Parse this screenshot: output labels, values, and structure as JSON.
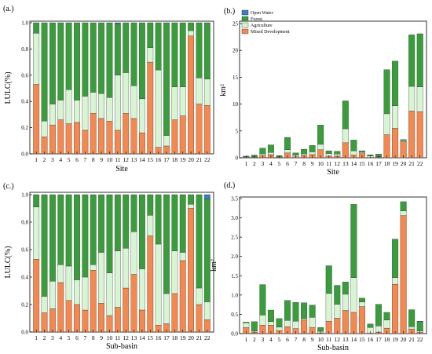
{
  "colors": {
    "mixed_development": "#f4884f",
    "agriculture": "#d7f5d2",
    "forest": "#3a9d3c",
    "open_water": "#3b7ec8"
  },
  "chart_data": [
    {
      "id": "a",
      "panel_label": "(a.)",
      "type": "bar",
      "stacked": true,
      "xlabel": "Site",
      "ylabel": "LULC(%)",
      "ylim": [
        0,
        1.0
      ],
      "yticks": [
        "0.0",
        "0.2",
        "0.4",
        "0.6",
        "0.8",
        "1.0"
      ],
      "categories": [
        "1",
        "2",
        "3",
        "4",
        "5",
        "6",
        "7",
        "8",
        "9",
        "10",
        "11",
        "12",
        "13",
        "14",
        "15",
        "16",
        "17",
        "18",
        "19",
        "20",
        "21",
        "22"
      ],
      "series": [
        {
          "key": "mixed_development",
          "values": [
            0.53,
            0.13,
            0.22,
            0.26,
            0.23,
            0.24,
            0.18,
            0.31,
            0.27,
            0.25,
            0.18,
            0.31,
            0.27,
            0.16,
            0.7,
            0.05,
            0.06,
            0.26,
            0.29,
            0.9,
            0.38,
            0.37
          ]
        },
        {
          "key": "agriculture",
          "values": [
            0.39,
            0.12,
            0.16,
            0.15,
            0.26,
            0.17,
            0.26,
            0.16,
            0.19,
            0.18,
            0.42,
            0.31,
            0.25,
            0.26,
            0.11,
            0.59,
            0.08,
            0.25,
            0.22,
            0.04,
            0.2,
            0.2
          ]
        },
        {
          "key": "forest",
          "values": [
            0.08,
            0.75,
            0.62,
            0.59,
            0.51,
            0.59,
            0.56,
            0.53,
            0.54,
            0.57,
            0.39,
            0.38,
            0.48,
            0.58,
            0.19,
            0.36,
            0.86,
            0.49,
            0.49,
            0.06,
            0.42,
            0.43
          ]
        },
        {
          "key": "open_water",
          "values": [
            0,
            0,
            0,
            0,
            0,
            0,
            0,
            0,
            0,
            0,
            0.01,
            0,
            0,
            0,
            0,
            0,
            0,
            0,
            0,
            0,
            0,
            0
          ]
        }
      ]
    },
    {
      "id": "b",
      "panel_label": "(b.)",
      "type": "bar",
      "stacked": true,
      "xlabel": "Site",
      "ylabel": "km²",
      "ylim": [
        0,
        25
      ],
      "yticks": [
        "0",
        "5",
        "10",
        "15",
        "20",
        "25"
      ],
      "categories": [
        "1",
        "2",
        "3",
        "4",
        "5",
        "6",
        "7",
        "8",
        "9",
        "10",
        "11",
        "12",
        "13",
        "14",
        "15",
        "16",
        "17",
        "18",
        "19",
        "20",
        "21",
        "22"
      ],
      "series": [
        {
          "key": "mixed_development",
          "values": [
            0.1,
            0.1,
            0.4,
            0.6,
            0.1,
            0.9,
            0.2,
            0.4,
            0.6,
            1.5,
            0.3,
            0.3,
            2.8,
            0.5,
            0.9,
            0.05,
            0.1,
            4.3,
            5.5,
            3.0,
            8.7,
            8.6
          ]
        },
        {
          "key": "agriculture",
          "values": [
            0.1,
            0.1,
            0.3,
            0.4,
            0.1,
            0.6,
            0.3,
            0.3,
            0.5,
            1.0,
            0.5,
            0.4,
            2.6,
            0.8,
            0.2,
            0.3,
            0.1,
            3.9,
            4.2,
            0.2,
            4.6,
            4.6
          ]
        },
        {
          "key": "forest",
          "values": [
            0.1,
            0.3,
            1.1,
            1.4,
            0.2,
            2.3,
            0.4,
            0.9,
            1.2,
            3.6,
            0.5,
            0.5,
            5.2,
            2.0,
            0.2,
            0.2,
            0.5,
            8.2,
            8.3,
            0.2,
            9.6,
            9.9
          ]
        },
        {
          "key": "open_water",
          "values": [
            0,
            0,
            0,
            0,
            0,
            0,
            0,
            0,
            0,
            0,
            0,
            0,
            0,
            0,
            0,
            0,
            0,
            0,
            0,
            0,
            0,
            0
          ]
        }
      ],
      "legend": [
        "Open Water",
        "Forest",
        "Agriculture",
        "Mixed Development"
      ],
      "legend_position": "top-left"
    },
    {
      "id": "c",
      "panel_label": "(c.)",
      "type": "bar",
      "stacked": true,
      "xlabel": "Sub-basin",
      "ylabel": "LULC(%)",
      "ylim": [
        0,
        1.0
      ],
      "yticks": [
        "0.0",
        "0.2",
        "0.4",
        "0.6",
        "0.8",
        "1.0"
      ],
      "categories": [
        "1",
        "2",
        "3",
        "4",
        "5",
        "6",
        "7",
        "8",
        "9",
        "10",
        "11",
        "12",
        "13",
        "14",
        "15",
        "16",
        "17",
        "18",
        "19",
        "20",
        "21",
        "22"
      ],
      "series": [
        {
          "key": "mixed_development",
          "values": [
            0.53,
            0.14,
            0.17,
            0.36,
            0.23,
            0.2,
            0.16,
            0.45,
            0.21,
            0.12,
            0.18,
            0.32,
            0.42,
            0.16,
            0.7,
            0.05,
            0.06,
            0.28,
            0.52,
            0.9,
            0.2,
            0.09
          ]
        },
        {
          "key": "agriculture",
          "values": [
            0.38,
            0.12,
            0.2,
            0.13,
            0.25,
            0.18,
            0.24,
            0.04,
            0.37,
            0.31,
            0.41,
            0.29,
            0.31,
            0.3,
            0.15,
            0.59,
            0.22,
            0.31,
            0.06,
            0.03,
            0.12,
            0.13
          ]
        },
        {
          "key": "forest",
          "values": [
            0.09,
            0.74,
            0.63,
            0.51,
            0.52,
            0.62,
            0.6,
            0.51,
            0.42,
            0.57,
            0.41,
            0.39,
            0.27,
            0.54,
            0.15,
            0.36,
            0.72,
            0.41,
            0.42,
            0.07,
            0.68,
            0.75
          ]
        },
        {
          "key": "open_water",
          "values": [
            0,
            0,
            0,
            0,
            0,
            0,
            0,
            0,
            0,
            0,
            0,
            0,
            0,
            0,
            0,
            0,
            0,
            0,
            0,
            0,
            0,
            0.03
          ]
        }
      ]
    },
    {
      "id": "d",
      "panel_label": "(d.)",
      "type": "bar",
      "stacked": true,
      "xlabel": "Sub-basin",
      "ylabel": "km²",
      "ylim": [
        0,
        3.5
      ],
      "yticks": [
        "0.0",
        "0.5",
        "1.0",
        "1.5",
        "2.0",
        "2.5",
        "3.0",
        "3.5"
      ],
      "categories": [
        "1",
        "2",
        "3",
        "4",
        "5",
        "6",
        "7",
        "8",
        "9",
        "10",
        "11",
        "12",
        "13",
        "14",
        "15",
        "16",
        "17",
        "18",
        "19",
        "20",
        "21",
        "22"
      ],
      "series": [
        {
          "key": "mixed_development",
          "values": [
            0.16,
            0.04,
            0.22,
            0.22,
            0.08,
            0.18,
            0.13,
            0.36,
            0.16,
            0.02,
            0.32,
            0.4,
            0.6,
            0.55,
            0.7,
            0.01,
            0.04,
            0.14,
            1.28,
            3.06,
            0.12,
            0.03
          ]
        },
        {
          "key": "agriculture",
          "values": [
            0.12,
            0.03,
            0.26,
            0.09,
            0.09,
            0.16,
            0.19,
            0.03,
            0.26,
            0.04,
            0.72,
            0.36,
            0.42,
            0.9,
            0.12,
            0.15,
            0.16,
            0.21,
            0.17,
            0.12,
            0.06,
            0.04
          ]
        },
        {
          "key": "forest",
          "values": [
            0.02,
            0.24,
            0.79,
            0.3,
            0.22,
            0.52,
            0.49,
            0.41,
            0.32,
            0.1,
            0.72,
            0.49,
            0.32,
            1.9,
            0.1,
            0.09,
            0.56,
            0.2,
            1.0,
            0.24,
            0.44,
            0.24
          ]
        },
        {
          "key": "open_water",
          "values": [
            0,
            0,
            0,
            0,
            0,
            0,
            0,
            0,
            0,
            0,
            0,
            0,
            0,
            0,
            0,
            0,
            0,
            0,
            0,
            0,
            0,
            0.01
          ]
        }
      ]
    }
  ]
}
